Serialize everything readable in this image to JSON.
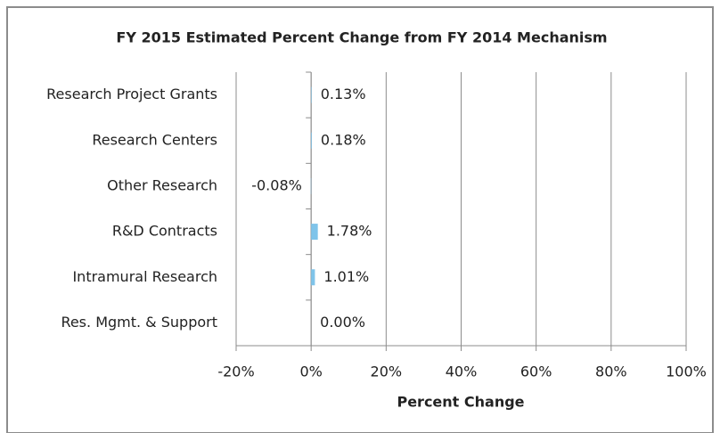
{
  "chart_data": {
    "type": "hbar",
    "title": "FY 2015 Estimated  Percent Change from FY 2014  Mechanism",
    "categories": [
      "Research Project Grants",
      "Research Centers",
      "Other Research",
      "R&D Contracts",
      "Intramural Research",
      "Res. Mgmt. & Support"
    ],
    "values": [
      0.13,
      0.18,
      -0.08,
      1.78,
      1.01,
      0.0
    ],
    "value_labels": [
      "0.13%",
      "0.18%",
      "-0.08%",
      "1.78%",
      "1.01%",
      "0.00%"
    ],
    "color": "#7fc4ea",
    "x_label": "Percent Change",
    "xlim": [
      -20,
      100
    ],
    "xticks": [
      {
        "value": -20,
        "label": "-20%"
      },
      {
        "value": 0,
        "label": "0%"
      },
      {
        "value": 20,
        "label": "20%"
      },
      {
        "value": 40,
        "label": "40%"
      },
      {
        "value": 60,
        "label": "60%"
      },
      {
        "value": 80,
        "label": "80%"
      },
      {
        "value": 100,
        "label": "100%"
      }
    ],
    "grid": true
  }
}
